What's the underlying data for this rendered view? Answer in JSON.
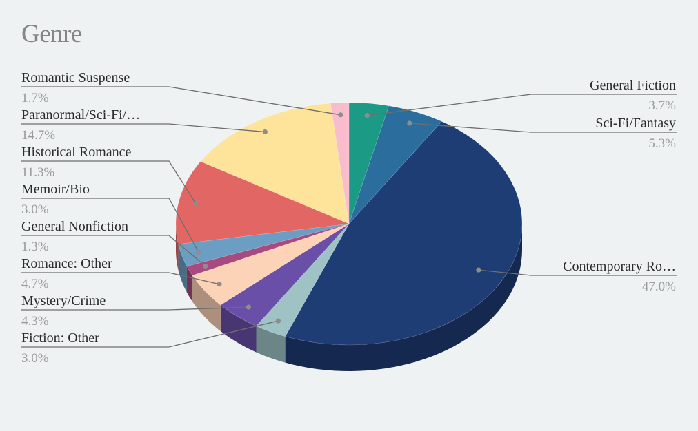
{
  "chart_data": {
    "type": "pie",
    "title": "Genre",
    "slices": [
      {
        "label": "General Fiction",
        "value": 3.7,
        "pct_label": "3.7%",
        "color": "#1b9a85"
      },
      {
        "label": "Sci-Fi/Fantasy",
        "value": 5.3,
        "pct_label": "5.3%",
        "color": "#2b6e9e"
      },
      {
        "label": "Contemporary Ro…",
        "value": 47.0,
        "pct_label": "47.0%",
        "color": "#1f3d75"
      },
      {
        "label": "Fiction: Other",
        "value": 3.0,
        "pct_label": "3.0%",
        "color": "#9fc3c5"
      },
      {
        "label": "Mystery/Crime",
        "value": 4.3,
        "pct_label": "4.3%",
        "color": "#6a4fa8"
      },
      {
        "label": "Romance: Other",
        "value": 4.7,
        "pct_label": "4.7%",
        "color": "#fdd3b8"
      },
      {
        "label": "General Nonfiction",
        "value": 1.3,
        "pct_label": "1.3%",
        "color": "#a8497f"
      },
      {
        "label": "Memoir/Bio",
        "value": 3.0,
        "pct_label": "3.0%",
        "color": "#6b9ec2"
      },
      {
        "label": "Historical Romance",
        "value": 11.3,
        "pct_label": "11.3%",
        "color": "#e26663"
      },
      {
        "label": "Paranormal/Sci-Fi/…",
        "value": 14.7,
        "pct_label": "14.7%",
        "color": "#fde49a"
      },
      {
        "label": "Romantic Suspense",
        "value": 1.7,
        "pct_label": "1.7%",
        "color": "#f9bccd"
      }
    ]
  }
}
